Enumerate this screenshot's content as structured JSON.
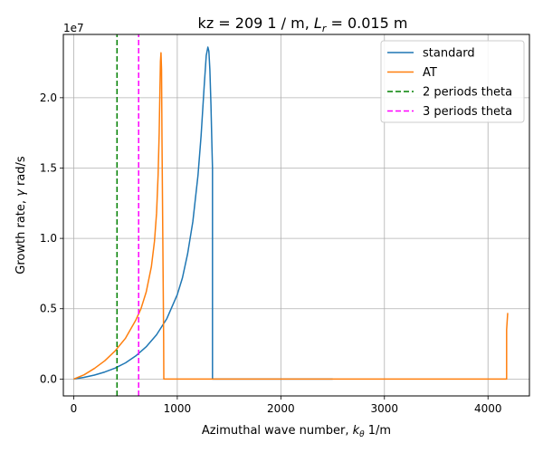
{
  "chart_data": {
    "type": "line",
    "title_prefix": "kz =  209 1 / m, ",
    "title_lr_symbol": "L",
    "title_lr_sub": "r",
    "title_suffix": " = 0.015 m",
    "xlabel_prefix": "Azimuthal wave number, ",
    "xlabel_symbol": "k",
    "xlabel_sub": "θ",
    "xlabel_suffix": " 1/m",
    "ylabel_prefix": "Growth rate, ",
    "ylabel_symbol": "γ",
    "ylabel_suffix": " rad/s",
    "y_multiplier_label": "1e7",
    "xlim": [
      -100,
      4400
    ],
    "ylim": [
      -1.2,
      24.5
    ],
    "xticks": [
      0,
      1000,
      2000,
      3000,
      4000
    ],
    "xtick_labels": [
      "0",
      "1000",
      "2000",
      "3000",
      "4000"
    ],
    "yticks": [
      0,
      5,
      10,
      15,
      20
    ],
    "ytick_labels": [
      "0.0",
      "0.5",
      "1.0",
      "1.5",
      "2.0"
    ],
    "grid": true,
    "legend_position": "top-right",
    "series": [
      {
        "name": "standard",
        "color": "#1f77b4",
        "style": "solid",
        "x": [
          0,
          100,
          200,
          300,
          400,
          500,
          600,
          700,
          800,
          900,
          1000,
          1050,
          1100,
          1150,
          1200,
          1230,
          1260,
          1280,
          1295,
          1305,
          1315,
          1325,
          1335,
          1340,
          1340,
          2500
        ],
        "y": [
          0,
          0.12,
          0.28,
          0.5,
          0.78,
          1.15,
          1.65,
          2.3,
          3.15,
          4.3,
          6.0,
          7.2,
          8.9,
          11.2,
          14.5,
          17.3,
          20.8,
          23.0,
          23.6,
          23.3,
          22.0,
          19.5,
          16.5,
          15.0,
          0,
          0
        ]
      },
      {
        "name": "AT",
        "color": "#ff7f0e",
        "style": "solid",
        "x": [
          0,
          100,
          200,
          300,
          400,
          500,
          600,
          650,
          700,
          750,
          780,
          800,
          815,
          825,
          832,
          838,
          843,
          848,
          852,
          860,
          868,
          870,
          870,
          4180,
          4180,
          4190
        ],
        "y": [
          0,
          0.3,
          0.75,
          1.3,
          2.0,
          2.9,
          4.2,
          5.0,
          6.2,
          8.0,
          9.8,
          11.8,
          14.5,
          17.5,
          20.5,
          22.6,
          23.2,
          22.0,
          17.0,
          10.0,
          3.0,
          0.2,
          0,
          0,
          3.5,
          4.7
        ]
      },
      {
        "name": "2 periods theta",
        "color": "#008000",
        "style": "dashed",
        "x": [
          418,
          418
        ],
        "y": [
          -1.2,
          24.5
        ]
      },
      {
        "name": "3 periods theta",
        "color": "#ff00ff",
        "style": "dashed",
        "x": [
          627,
          627
        ],
        "y": [
          -1.2,
          24.5
        ]
      }
    ]
  }
}
